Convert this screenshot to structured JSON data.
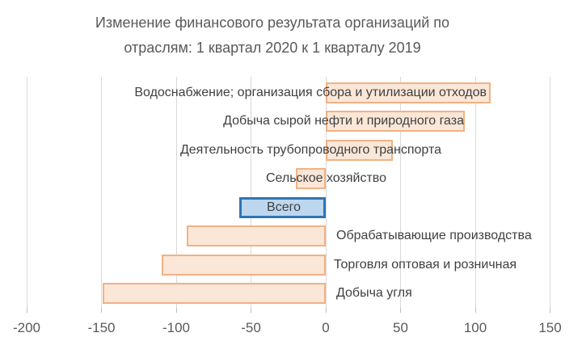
{
  "chart_data": {
    "type": "bar",
    "orientation": "horizontal",
    "title": "Изменение финансового результата организаций по отраслям: 1 квартал 2020 к 1 кварталу 2019",
    "title_lines": [
      "Изменение финансового результата организаций по",
      "отраслям: 1 квартал 2020 к 1 кварталу 2019"
    ],
    "categories": [
      "Водоснабжение; организация сбора и утилизации отходов",
      "Добыча сырой нефти и природного газа",
      "Деятельность трубопроводного транспорта",
      "Сельское хозяйство",
      "Всего",
      "Обрабатывающие производства",
      "Торговля оптовая и розничная",
      "Добыча угля"
    ],
    "values": [
      110,
      93,
      45,
      -20,
      -58,
      -93,
      -110,
      -149
    ],
    "highlight_index": 4,
    "highlight_category": "Всего",
    "xlabel": "",
    "ylabel": "",
    "xlim": [
      -200,
      150
    ],
    "xticks": [
      -200,
      -150,
      -100,
      -50,
      0,
      50,
      100,
      150
    ],
    "grid": "vertical-major",
    "legend": "none",
    "colors": {
      "bar_fill": "#FBE7D8",
      "bar_border": "#F2B183",
      "highlight_fill": "#BDD7EE",
      "highlight_border": "#2E75B6",
      "gridline": "#D9D9D9",
      "tick_mark": "#BFBFBF",
      "title_text": "#595959",
      "label_text": "#3F3F3F",
      "axis_text": "#595959"
    }
  }
}
